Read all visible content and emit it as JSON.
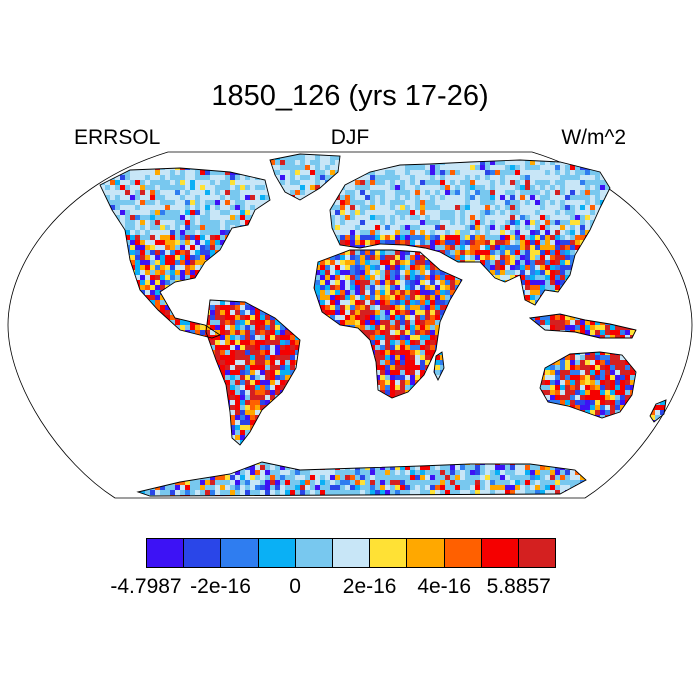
{
  "title": "1850_126 (yrs 17-26)",
  "subtitle_left": "ERRSOL",
  "subtitle_center": "DJF",
  "subtitle_right": "W/m^2",
  "colorbar": {
    "colors": [
      "#3d12f5",
      "#2a46e8",
      "#2f7df0",
      "#0ab0f5",
      "#78c8ef",
      "#c8e6f7",
      "#ffe135",
      "#ffa800",
      "#ff6000",
      "#f50000",
      "#d42020"
    ],
    "ticks": [
      "-4.7987",
      "-2e-16",
      "0",
      "2e-16",
      "4e-16",
      "5.8857"
    ],
    "tick_index": [
      0,
      2,
      4,
      6,
      8,
      10
    ]
  },
  "map": {
    "projection": "robinson",
    "variable": "ERRSOL",
    "season": "DJF",
    "units": "W/m^2"
  }
}
